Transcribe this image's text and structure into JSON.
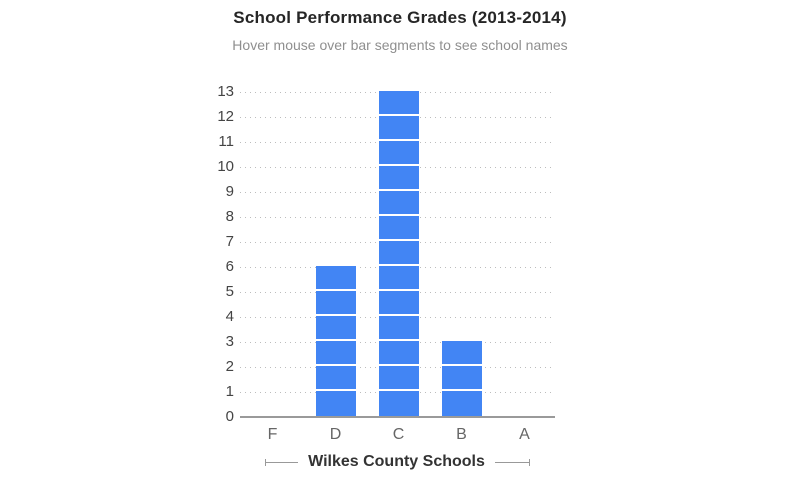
{
  "header": {
    "title": "School Performance Grades (2013-2014)",
    "subtitle": "Hover mouse over bar segments to see school names"
  },
  "chart_data": {
    "type": "bar",
    "style": "stacked-unit-segments (one segment per school)",
    "categories": [
      "F",
      "D",
      "C",
      "B",
      "A"
    ],
    "values": [
      0,
      6,
      13,
      3,
      0
    ],
    "title": "School Performance Grades (2013-2014)",
    "subtitle": "Hover mouse over bar segments to see school names",
    "xlabel": "Wilkes County Schools",
    "ylabel": "",
    "ylim": [
      0,
      13
    ],
    "yticks": [
      0,
      1,
      2,
      3,
      4,
      5,
      6,
      7,
      8,
      9,
      10,
      11,
      12,
      13
    ],
    "grid": "horizontal dotted gridlines at each integer",
    "legend": "none",
    "colors": {
      "bar": "#4285f4",
      "segment_divider": "#ffffff",
      "gridline": "#bdbdbd",
      "baseline": "#9a9a9a",
      "title_text": "#262626",
      "subtitle_text": "#8f8f8f",
      "y_tick_text": "#444444",
      "x_tick_text": "#666666",
      "axis_title_text": "#333333"
    }
  }
}
